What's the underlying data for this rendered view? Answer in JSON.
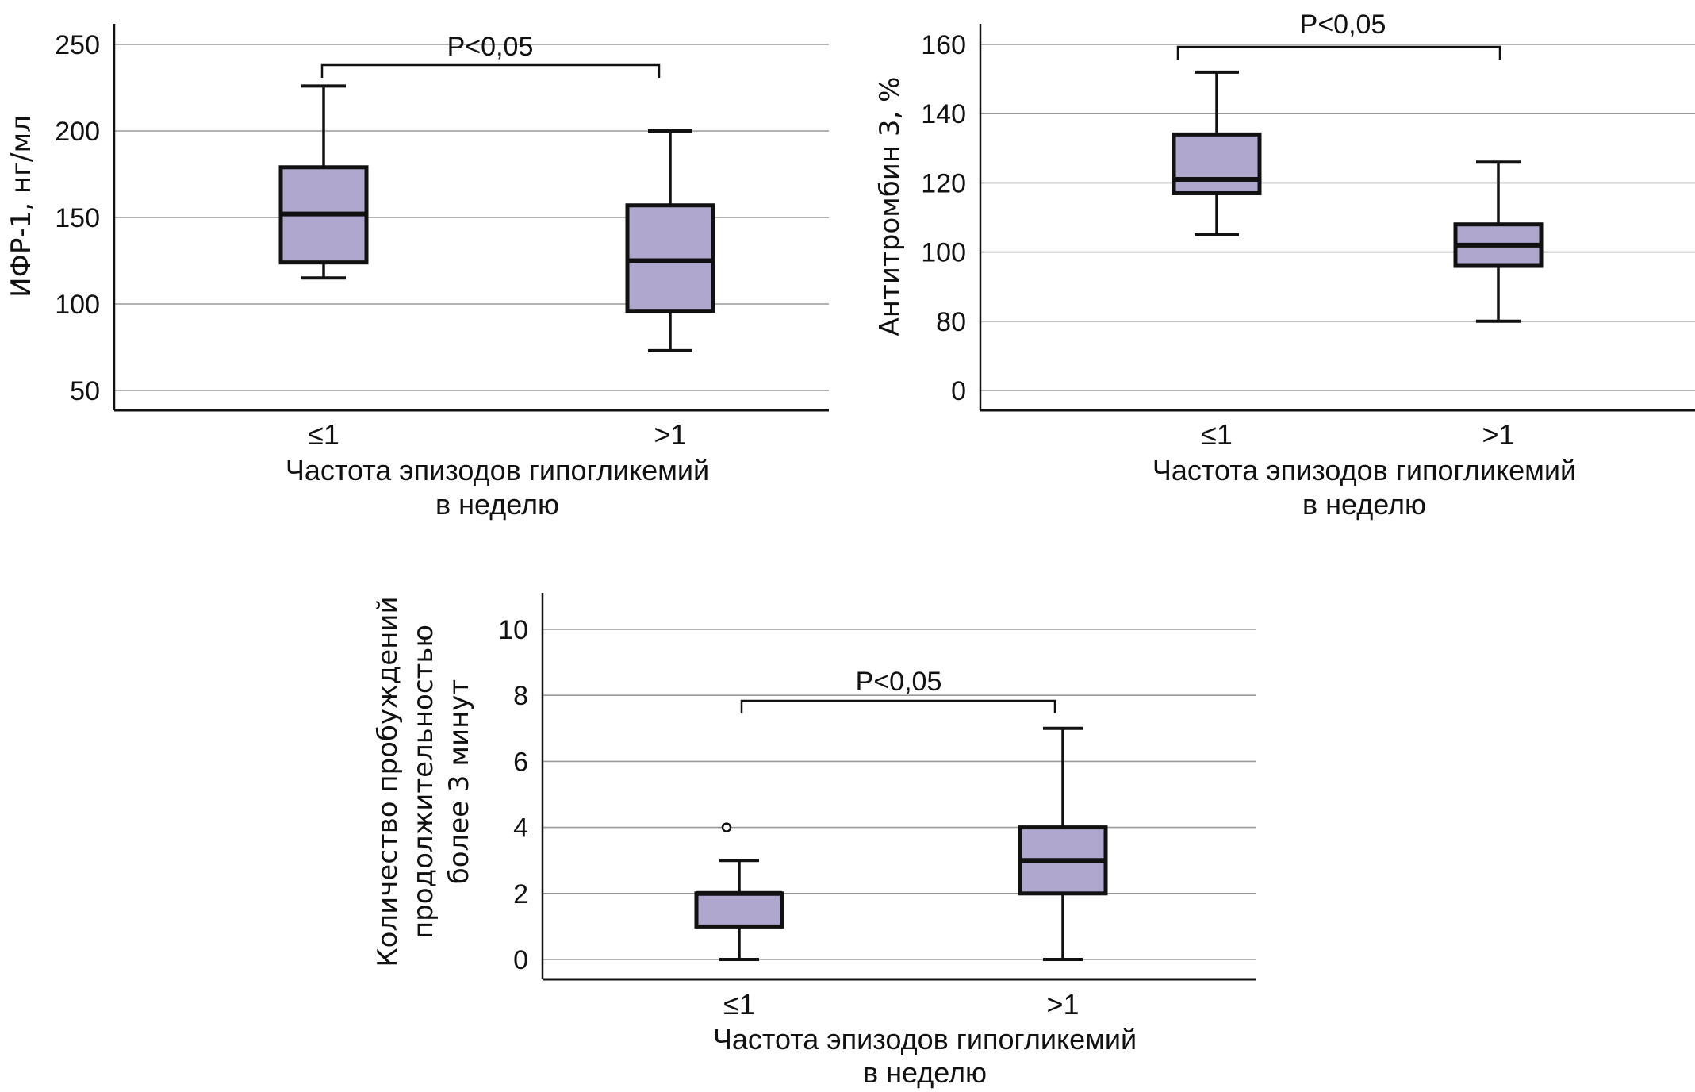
{
  "chart_data": [
    {
      "type": "box",
      "id": "igf1",
      "title": "",
      "ylabel": "ИФР-1, нг/мл",
      "xlabel": "Частота эпизодов гипогликемий в неделю",
      "xlabel_lines": [
        "Частота эпизодов гипогликемий",
        "в неделю"
      ],
      "categories": [
        "≤1",
        ">1"
      ],
      "yticks": [
        50,
        100,
        150,
        200,
        250
      ],
      "ytick_labels": [
        "50",
        "100",
        "150",
        "200",
        "250"
      ],
      "scale": "linear",
      "ylim": [
        39,
        262
      ],
      "grid": true,
      "boxes": [
        {
          "category": "≤1",
          "whisker_low": 115,
          "q1": 124,
          "median": 152,
          "q3": 179,
          "whisker_high": 226,
          "outliers": []
        },
        {
          "category": ">1",
          "whisker_low": 73,
          "q1": 96,
          "median": 125,
          "q3": 157,
          "whisker_high": 200,
          "outliers": []
        }
      ],
      "significance": {
        "label": "P<0,05",
        "between": [
          "≤1",
          ">1"
        ]
      },
      "box_color": "#B0A7CF"
    },
    {
      "type": "box",
      "id": "antithrombin",
      "title": "",
      "ylabel": "Антитромбин 3, %",
      "xlabel": "Частота эпизодов гипогликемий в неделю",
      "xlabel_lines": [
        "Частота эпизодов гипогликемий",
        "в неделю"
      ],
      "categories": [
        "≤1",
        ">1"
      ],
      "yticks": [
        0,
        80,
        100,
        120,
        140,
        160
      ],
      "ytick_labels": [
        "0",
        "80",
        "100",
        "120",
        "140",
        "160"
      ],
      "scale": "broken (0 then 80–160 evenly spaced)",
      "grid": true,
      "boxes": [
        {
          "category": "≤1",
          "whisker_low": 105,
          "q1": 117,
          "median": 121,
          "q3": 134,
          "whisker_high": 152,
          "outliers": []
        },
        {
          "category": ">1",
          "whisker_low": 80,
          "q1": 96,
          "median": 102,
          "q3": 108,
          "whisker_high": 126,
          "outliers": []
        }
      ],
      "significance": {
        "label": "P<0,05",
        "between": [
          "≤1",
          ">1"
        ]
      },
      "box_color": "#B0A7CF"
    },
    {
      "type": "box",
      "id": "awakenings",
      "title": "",
      "ylabel": "Количество пробуждений продолжительностью более 3 минут",
      "ylabel_lines": [
        "Количество пробуждений",
        "продолжительностью",
        "более 3 минут"
      ],
      "xlabel": "Частота эпизодов гипогликемий в неделю",
      "xlabel_lines": [
        "Частота эпизодов гипогликемий",
        "в неделю"
      ],
      "categories": [
        "≤1",
        ">1"
      ],
      "yticks": [
        0,
        2,
        4,
        6,
        8,
        10
      ],
      "ytick_labels": [
        "0",
        "2",
        "4",
        "6",
        "8",
        "10"
      ],
      "scale": "linear",
      "ylim": [
        -0.6,
        11.1
      ],
      "grid": true,
      "boxes": [
        {
          "category": "≤1",
          "whisker_low": 0,
          "q1": 1,
          "median": 2,
          "q3": 2,
          "whisker_high": 3,
          "outliers": [
            4
          ]
        },
        {
          "category": ">1",
          "whisker_low": 0,
          "q1": 2,
          "median": 3,
          "q3": 4,
          "whisker_high": 7,
          "outliers": []
        }
      ],
      "significance": {
        "label": "P<0,05",
        "between": [
          "≤1",
          ">1"
        ]
      },
      "box_color": "#B0A7CF"
    }
  ]
}
